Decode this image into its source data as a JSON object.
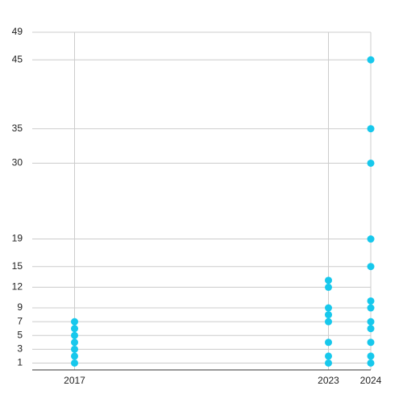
{
  "chart_data": {
    "type": "scatter",
    "series": [
      {
        "color": "#17c8ec",
        "x": [
          2017,
          2017,
          2017,
          2017,
          2017,
          2017,
          2017,
          2023,
          2023,
          2023,
          2023,
          2023,
          2023,
          2023,
          2023,
          2024,
          2024,
          2024,
          2024,
          2024,
          2024,
          2024,
          2024,
          2024,
          2024,
          2024,
          2024
        ],
        "values": [
          1,
          2,
          3,
          4,
          5,
          6,
          7,
          1,
          2,
          4,
          7,
          8,
          9,
          12,
          13,
          1,
          2,
          4,
          6,
          7,
          9,
          10,
          15,
          19,
          30,
          35,
          45
        ]
      }
    ],
    "xlim": [
      2016,
      2024
    ],
    "xticks": [
      2017,
      2023,
      2024
    ],
    "ylim": [
      0,
      49
    ],
    "yticks": [
      1,
      3,
      5,
      7,
      9,
      12,
      15,
      19,
      30,
      35,
      45,
      49
    ],
    "grid": true
  }
}
